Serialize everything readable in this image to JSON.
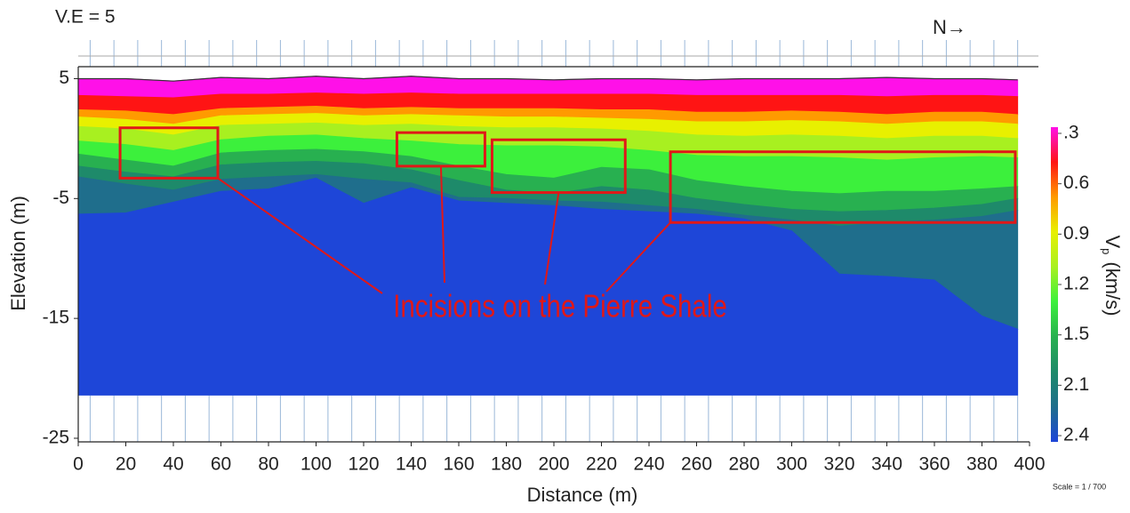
{
  "chart_data": {
    "type": "contour",
    "vertical_exaggeration_label": "V.E = 5",
    "north_label": "N→",
    "scale_label": "Scale = 1 / 700",
    "xlabel": "Distance (m)",
    "ylabel": "Elevation (m)",
    "xlim": [
      0,
      400
    ],
    "ylim": [
      -25.3,
      6
    ],
    "xticks": [
      0,
      20,
      40,
      60,
      80,
      100,
      120,
      140,
      160,
      180,
      200,
      220,
      240,
      260,
      280,
      300,
      320,
      340,
      360,
      380,
      400
    ],
    "yticks": [
      5,
      -5,
      -15,
      -25
    ],
    "x": [
      0,
      20,
      40,
      60,
      80,
      100,
      120,
      140,
      160,
      180,
      200,
      220,
      240,
      260,
      280,
      300,
      320,
      340,
      360,
      380,
      395
    ],
    "surface": [
      5.0,
      5.0,
      4.8,
      5.1,
      5.0,
      5.2,
      5.0,
      5.2,
      5.0,
      5.0,
      4.9,
      5.0,
      5.0,
      4.9,
      5.0,
      5.0,
      5.0,
      5.1,
      5.0,
      5.0,
      4.9
    ],
    "series": [
      {
        "color": "#ff10e8",
        "values": [
          3.6,
          3.5,
          3.4,
          3.7,
          3.7,
          3.8,
          3.7,
          3.8,
          3.7,
          3.7,
          3.7,
          3.7,
          3.7,
          3.6,
          3.6,
          3.6,
          3.6,
          3.5,
          3.6,
          3.6,
          3.5
        ]
      },
      {
        "color": "#ff1414",
        "values": [
          2.4,
          2.3,
          2.0,
          2.5,
          2.6,
          2.7,
          2.5,
          2.6,
          2.5,
          2.5,
          2.5,
          2.4,
          2.4,
          2.2,
          2.2,
          2.3,
          2.2,
          2.0,
          2.2,
          2.2,
          2.0
        ]
      },
      {
        "color": "#ff9a00",
        "values": [
          1.8,
          1.6,
          1.2,
          1.9,
          2.0,
          2.1,
          1.9,
          2.0,
          1.9,
          1.8,
          1.8,
          1.7,
          1.6,
          1.4,
          1.4,
          1.5,
          1.4,
          1.2,
          1.4,
          1.4,
          1.2
        ]
      },
      {
        "color": "#e8f000",
        "values": [
          1.0,
          0.8,
          0.3,
          1.1,
          1.2,
          1.3,
          1.1,
          1.2,
          1.0,
          0.9,
          0.9,
          0.8,
          0.6,
          0.3,
          0.2,
          0.3,
          0.2,
          0.0,
          0.2,
          0.2,
          0.0
        ]
      },
      {
        "color": "#a8f020",
        "values": [
          -0.2,
          -0.5,
          -1.0,
          -0.1,
          0.2,
          0.3,
          0.0,
          -0.2,
          -0.5,
          -0.6,
          -0.6,
          -0.7,
          -1.0,
          -1.4,
          -1.5,
          -1.5,
          -1.6,
          -1.8,
          -1.6,
          -1.5,
          -1.6
        ]
      },
      {
        "color": "#3cf03c",
        "values": [
          -1.3,
          -1.8,
          -2.3,
          -1.2,
          -1.0,
          -0.9,
          -1.1,
          -1.5,
          -2.3,
          -3.0,
          -3.3,
          -2.4,
          -2.6,
          -3.5,
          -4.0,
          -4.4,
          -4.6,
          -4.4,
          -4.4,
          -4.2,
          -4.0
        ]
      },
      {
        "color": "#28b050",
        "values": [
          -2.3,
          -2.8,
          -3.2,
          -2.2,
          -2.0,
          -1.9,
          -2.1,
          -2.6,
          -3.5,
          -4.3,
          -4.6,
          -4.0,
          -4.3,
          -5.0,
          -5.5,
          -5.9,
          -6.1,
          -6.0,
          -5.8,
          -5.5,
          -5.0
        ]
      },
      {
        "color": "#1e8a6a",
        "values": [
          -3.2,
          -3.8,
          -4.3,
          -3.4,
          -3.2,
          -3.0,
          -3.4,
          -3.7,
          -4.9,
          -5.0,
          -5.2,
          -5.3,
          -5.6,
          -5.9,
          -6.4,
          -6.8,
          -7.3,
          -7.0,
          -6.8,
          -6.5,
          -6.0
        ]
      },
      {
        "color": "#1f6e8c",
        "values": [
          -6.3,
          -6.2,
          -5.3,
          -4.4,
          -4.2,
          -3.3,
          -5.4,
          -4.1,
          -5.2,
          -5.4,
          -5.6,
          -5.9,
          -6.1,
          -6.3,
          -6.7,
          -7.7,
          -11.3,
          -11.5,
          -11.8,
          -14.8,
          -15.9
        ]
      },
      {
        "color": "#1e46d8",
        "values": [
          -21.4,
          -21.4,
          -21.4,
          -21.4,
          -21.4,
          -21.4,
          -21.4,
          -21.4,
          -21.4,
          -21.4,
          -21.4,
          -21.4,
          -21.4,
          -21.4,
          -21.4,
          -21.4,
          -21.4,
          -21.4,
          -21.4,
          -21.4,
          -21.4
        ]
      }
    ],
    "colorbar": {
      "label": {
        "symbol": "V",
        "subscript": "p",
        "unit": "(km/s)"
      },
      "ticks": [
        {
          "value": 0.3,
          "label": ".3"
        },
        0.6,
        0.9,
        1.2,
        1.5,
        2.1,
        2.4
      ]
    },
    "annotation": {
      "text": "Incisions on the Pierre Shale",
      "color": "#e01818",
      "boxes": [
        {
          "x": [
            17.6,
            58.7
          ],
          "y": [
            0.9,
            -3.3
          ]
        },
        {
          "x": [
            134,
            171
          ],
          "y": [
            0.5,
            -2.3
          ]
        },
        {
          "x": [
            174,
            230
          ],
          "y": [
            -0.1,
            -4.5
          ]
        },
        {
          "x": [
            249,
            394
          ],
          "y": [
            -1.1,
            -7.0
          ]
        }
      ]
    }
  }
}
